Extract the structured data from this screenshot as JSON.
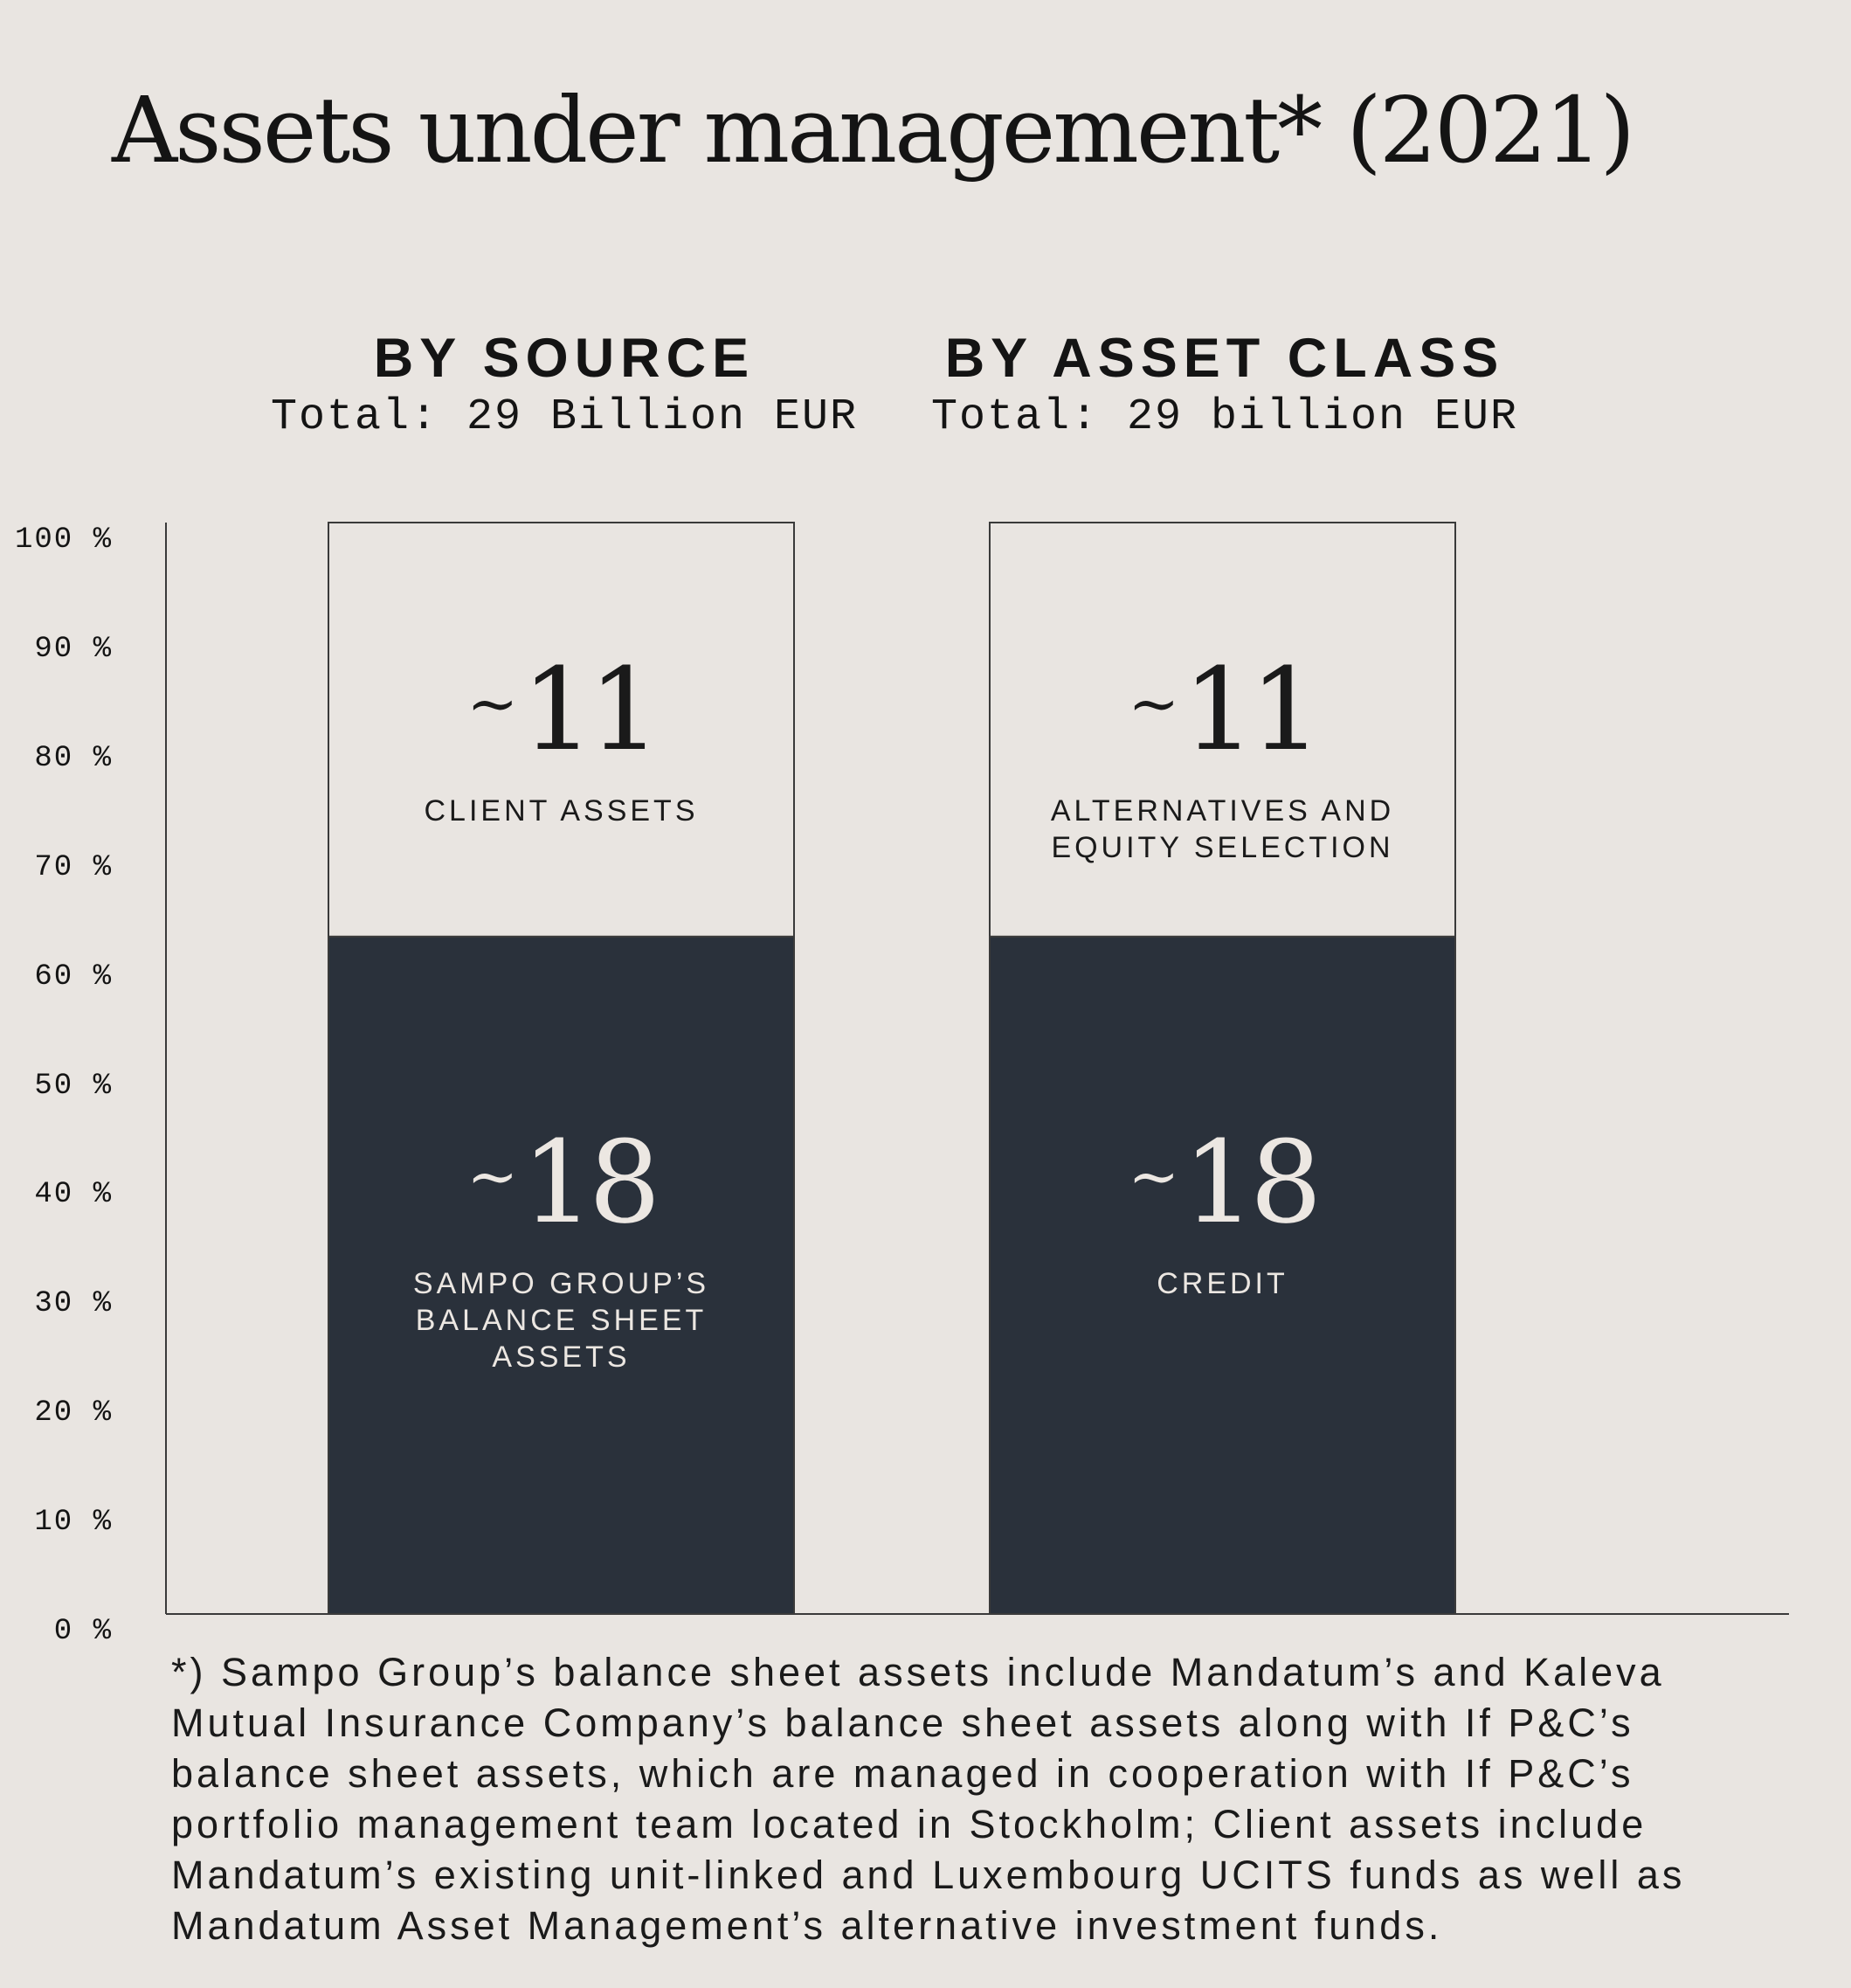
{
  "title": "Assets under management* (2021)",
  "chart_data": {
    "type": "bar",
    "stacked": true,
    "normalized_percent": true,
    "yaxis": {
      "ticks": [
        "0 %",
        "10 %",
        "20 %",
        "30 %",
        "40 %",
        "50 %",
        "60 %",
        "70 %",
        "80 %",
        "90 %",
        "100 %"
      ],
      "ylim": [
        0,
        100
      ]
    },
    "grid": false,
    "bars": [
      {
        "heading": "BY SOURCE",
        "subheading": "Total: 29 Billion EUR",
        "segments": [
          {
            "value": 18,
            "display": "18",
            "label": "SAMPO GROUP’S\nBALANCE SHEET\nASSETS",
            "color": "#2a313b"
          },
          {
            "value": 11,
            "display": "11",
            "label": "CLIENT ASSETS",
            "color": "#e9e5e1"
          }
        ]
      },
      {
        "heading": "BY ASSET CLASS",
        "subheading": "Total: 29 billion EUR",
        "segments": [
          {
            "value": 18,
            "display": "18",
            "label": "CREDIT",
            "color": "#2a313b"
          },
          {
            "value": 11,
            "display": "11",
            "label": "ALTERNATIVES AND\nEQUITY SELECTION",
            "color": "#e9e5e1"
          }
        ]
      }
    ]
  },
  "tilde": "~",
  "footnote": "*) Sampo Group’s balance sheet assets include Mandatum’s and Kaleva Mutual Insurance Company’s balance sheet assets along with If P&C’s balance sheet assets, which are managed in cooperation with If P&C’s portfolio management team located in Stockholm; Client assets include Mandatum’s existing unit-linked and Luxembourg UCITS funds as well as Mandatum Asset Management’s alternative investment funds."
}
